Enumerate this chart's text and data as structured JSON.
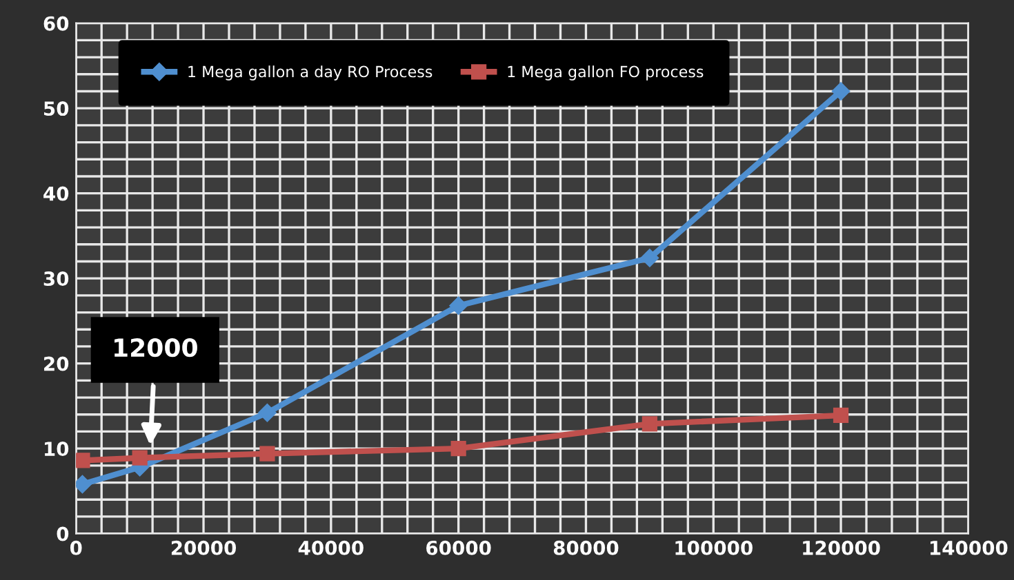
{
  "chart_data": {
    "type": "line",
    "x": [
      1000,
      10000,
      30000,
      60000,
      90000,
      120000
    ],
    "series": [
      {
        "name": "1 Mega gallon a day RO Process",
        "color": "#4f8fd0",
        "marker": "diamond",
        "values": [
          5.8,
          7.8,
          14.2,
          26.8,
          32.4,
          52
        ]
      },
      {
        "name": "1 Mega gallon FO process",
        "color": "#c0504d",
        "marker": "square",
        "values": [
          8.6,
          8.9,
          9.4,
          10.0,
          12.9,
          13.9
        ]
      }
    ],
    "xlim": [
      0,
      140000
    ],
    "xticks": [
      0,
      20000,
      40000,
      60000,
      80000,
      100000,
      120000,
      140000
    ],
    "ylim": [
      0,
      60
    ],
    "yticks": [
      0,
      10,
      20,
      30,
      40,
      50,
      60
    ],
    "annotations": [
      "12000"
    ],
    "grid": true,
    "legend": "top left",
    "line_style": "solid"
  }
}
